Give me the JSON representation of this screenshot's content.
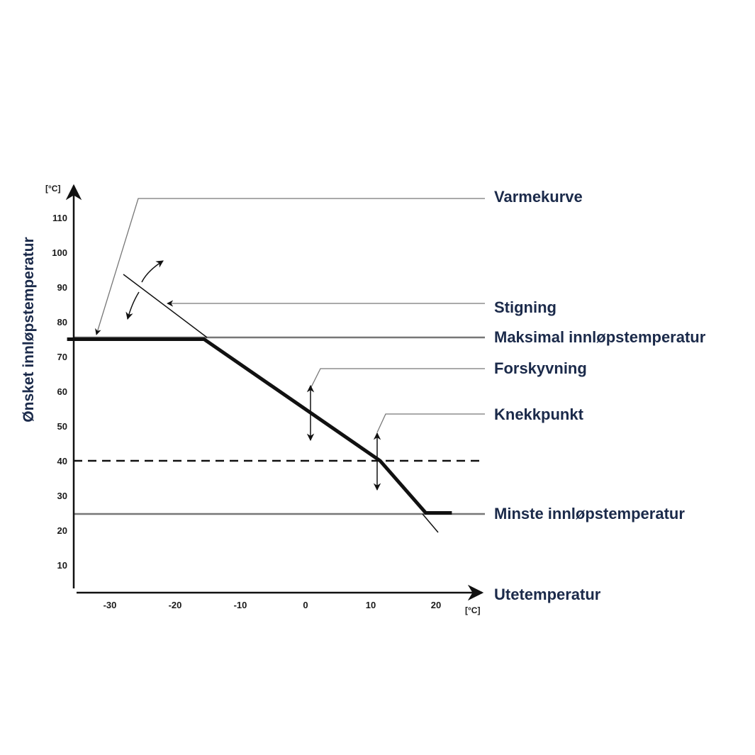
{
  "chart_data": {
    "type": "line",
    "title": "",
    "xlabel": "Utetemperatur",
    "ylabel": "Ønsket innløpstemperatur",
    "x_unit": "[°C]",
    "y_unit": "[°C]",
    "xlim": [
      -37,
      22
    ],
    "ylim": [
      2,
      114
    ],
    "x_ticks": [
      -30,
      -20,
      -10,
      0,
      10,
      20
    ],
    "y_ticks": [
      10,
      20,
      30,
      40,
      50,
      60,
      70,
      80,
      90,
      100,
      110
    ],
    "grid": false,
    "series": [
      {
        "name": "Varmekurve",
        "x": [
          -37,
          -16,
          11,
          18,
          22
        ],
        "y": [
          75,
          75,
          40,
          25,
          25
        ]
      }
    ],
    "reference_lines": [
      {
        "name": "Maksimal innløpstemperatur",
        "y": 75,
        "style": "solid"
      },
      {
        "name": "Minste innløpstemperatur",
        "y": 25,
        "style": "solid"
      },
      {
        "name": "",
        "y": 40,
        "style": "dashed"
      }
    ],
    "annotations": [
      {
        "label": "Varmekurve"
      },
      {
        "label": "Stigning"
      },
      {
        "label": "Maksimal innløpstemperatur"
      },
      {
        "label": "Forskyvning"
      },
      {
        "label": "Knekkpunkt"
      },
      {
        "label": "Minste innløpstemperatur"
      }
    ]
  },
  "labels": {
    "varmekurve": "Varmekurve",
    "stigning": "Stigning",
    "maks": "Maksimal innløpstemperatur",
    "forskyvning": "Forskyvning",
    "knekkpunkt": "Knekkpunkt",
    "minste": "Minste innløpstemperatur",
    "xlabel": "Utetemperatur",
    "ylabel": "Ønsket innløpstemperatur",
    "x_unit": "[°C]",
    "y_unit": "[°C]"
  },
  "colors": {
    "line": "#111111",
    "reference": "#777777",
    "text": "#1b2a4a"
  }
}
